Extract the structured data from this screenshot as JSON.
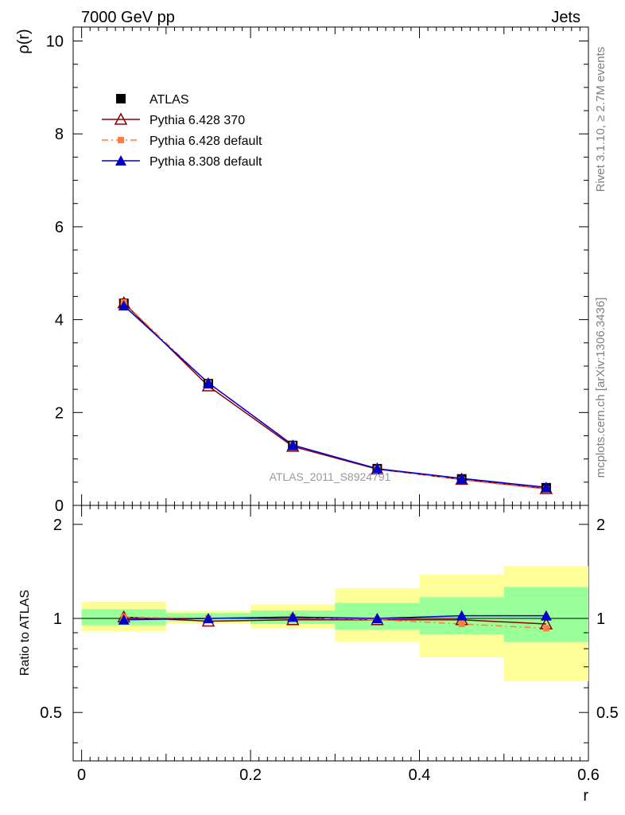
{
  "header": {
    "left_title": "7000 GeV pp",
    "right_title": "Jets"
  },
  "side_labels": {
    "rivet": "Rivet 3.1.10, ≥ 2.7M events",
    "mcplots": "mcplots.cern.ch [arXiv:1306.3436]"
  },
  "watermark": "ATLAS_2011_S8924791",
  "chart_data": [
    {
      "type": "line",
      "panel": "main",
      "ylabel": "ρ(r)",
      "xlabel": "",
      "xlim": [
        -0.01,
        0.6
      ],
      "ylim": [
        0,
        10.3
      ],
      "yticks": [
        0,
        2,
        4,
        6,
        8,
        10
      ],
      "ytick_labels": [
        "0",
        "2",
        "4",
        "6",
        "8",
        "10"
      ],
      "legend_position": "top-left",
      "x": [
        0.05,
        0.15,
        0.25,
        0.35,
        0.45,
        0.55
      ],
      "series": [
        {
          "name": "ATLAS",
          "values": [
            4.35,
            2.62,
            1.29,
            0.79,
            0.57,
            0.38
          ],
          "color": "#000000",
          "marker": "square-filled",
          "line": "none"
        },
        {
          "name": "Pythia 6.428 370",
          "values": [
            4.36,
            2.57,
            1.27,
            0.78,
            0.56,
            0.36
          ],
          "color": "#8b0000",
          "marker": "triangle-open",
          "line": "solid"
        },
        {
          "name": "Pythia 6.428 default",
          "values": [
            4.37,
            2.63,
            1.3,
            0.79,
            0.55,
            0.35
          ],
          "color": "#ff7f3f",
          "marker": "square-small",
          "line": "dashdot"
        },
        {
          "name": "Pythia 8.308 default",
          "values": [
            4.3,
            2.64,
            1.3,
            0.79,
            0.58,
            0.39
          ],
          "color": "#0000cc",
          "marker": "triangle-filled",
          "line": "solid"
        }
      ]
    },
    {
      "type": "line",
      "panel": "ratio",
      "ylabel": "Ratio to ATLAS",
      "xlabel": "r",
      "xlim": [
        -0.01,
        0.6
      ],
      "ylim": [
        0.35,
        2.3
      ],
      "yticks": [
        0.5,
        1,
        2
      ],
      "ytick_labels": [
        "0.5",
        "1",
        "2"
      ],
      "xticks": [
        0,
        0.2,
        0.4,
        0.6
      ],
      "xtick_labels": [
        "0",
        "0.2",
        "0.4",
        "0.6"
      ],
      "bins": [
        [
          0.0,
          0.1
        ],
        [
          0.1,
          0.2
        ],
        [
          0.2,
          0.3
        ],
        [
          0.3,
          0.4
        ],
        [
          0.4,
          0.5
        ],
        [
          0.5,
          0.6
        ]
      ],
      "band_stat": [
        [
          0.95,
          1.07
        ],
        [
          0.98,
          1.04
        ],
        [
          0.96,
          1.06
        ],
        [
          0.92,
          1.12
        ],
        [
          0.89,
          1.17
        ],
        [
          0.84,
          1.26
        ]
      ],
      "band_total": [
        [
          0.91,
          1.13
        ],
        [
          0.96,
          1.06
        ],
        [
          0.93,
          1.11
        ],
        [
          0.84,
          1.25
        ],
        [
          0.75,
          1.38
        ],
        [
          0.63,
          1.47
        ]
      ],
      "band_colors": {
        "stat": "#99ff99",
        "total": "#ffff99"
      },
      "x": [
        0.05,
        0.15,
        0.25,
        0.35,
        0.45,
        0.55
      ],
      "series": [
        {
          "name": "Pythia 6.428 370",
          "values": [
            1.01,
            0.98,
            0.99,
            0.99,
            0.99,
            0.96
          ],
          "color": "#8b0000",
          "marker": "triangle-open",
          "line": "solid"
        },
        {
          "name": "Pythia 6.428 default",
          "values": [
            1.01,
            1.0,
            1.01,
            0.99,
            0.96,
            0.93
          ],
          "color": "#ff7f3f",
          "marker": "square-small",
          "line": "dashdot"
        },
        {
          "name": "Pythia 8.308 default",
          "values": [
            0.99,
            1.0,
            1.01,
            1.0,
            1.02,
            1.02
          ],
          "color": "#0000cc",
          "marker": "triangle-filled",
          "line": "solid"
        }
      ]
    }
  ]
}
